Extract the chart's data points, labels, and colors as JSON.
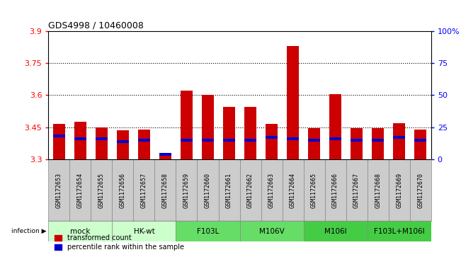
{
  "title": "GDS4998 / 10460008",
  "samples": [
    "GSM1172653",
    "GSM1172654",
    "GSM1172655",
    "GSM1172656",
    "GSM1172657",
    "GSM1172658",
    "GSM1172659",
    "GSM1172660",
    "GSM1172661",
    "GSM1172662",
    "GSM1172663",
    "GSM1172664",
    "GSM1172665",
    "GSM1172666",
    "GSM1172667",
    "GSM1172668",
    "GSM1172669",
    "GSM1172670"
  ],
  "red_tops": [
    3.465,
    3.475,
    3.45,
    3.435,
    3.44,
    3.33,
    3.62,
    3.6,
    3.545,
    3.545,
    3.465,
    3.83,
    3.445,
    3.605,
    3.445,
    3.445,
    3.47,
    3.44
  ],
  "percentile": [
    18,
    16,
    16,
    14,
    15,
    4,
    15,
    15,
    15,
    15,
    17,
    16,
    15,
    16,
    15,
    15,
    17,
    15
  ],
  "ymin": 3.3,
  "ymax": 3.9,
  "yticks_left": [
    3.3,
    3.45,
    3.6,
    3.75,
    3.9
  ],
  "yticks_right": [
    0,
    25,
    50,
    75,
    100
  ],
  "groups": [
    {
      "label": "mock",
      "start": 0,
      "end": 2,
      "color": "#ccffcc"
    },
    {
      "label": "HK-wt",
      "start": 3,
      "end": 5,
      "color": "#ccffcc"
    },
    {
      "label": "F103L",
      "start": 6,
      "end": 8,
      "color": "#66dd66"
    },
    {
      "label": "M106V",
      "start": 9,
      "end": 11,
      "color": "#66dd66"
    },
    {
      "label": "M106I",
      "start": 12,
      "end": 14,
      "color": "#44cc44"
    },
    {
      "label": "F103L+M106I",
      "start": 15,
      "end": 17,
      "color": "#44cc44"
    }
  ],
  "legend_red": "transformed count",
  "legend_blue": "percentile rank within the sample",
  "red_color": "#cc0000",
  "blue_color": "#0000cc",
  "bar_bg_color": "#cccccc",
  "bar_width": 0.55
}
